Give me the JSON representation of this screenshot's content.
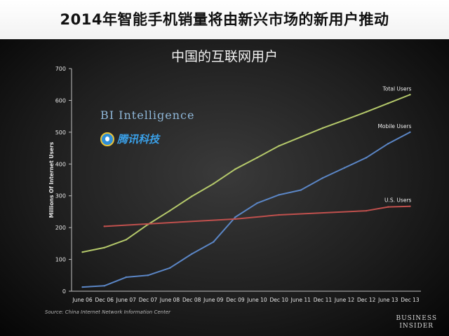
{
  "header": {
    "title": "2014年智能手机销量将由新兴市场的新用户推动"
  },
  "branding": {
    "bi_intelligence": "BI Intelligence",
    "tencent": "腾讯科技",
    "business_insider_line1": "BUSINESS",
    "business_insider_line2": "INSIDER"
  },
  "source": "Source: China Internet Network Information Center",
  "chart_data": {
    "type": "line",
    "title": "中国的互联网用户",
    "xlabel": "",
    "ylabel": "Millions Of Internet Users",
    "ylim": [
      0,
      700
    ],
    "yticks": [
      0,
      100,
      200,
      300,
      400,
      500,
      600,
      700
    ],
    "categories": [
      "June 06",
      "Dec 06",
      "June 07",
      "Dec 07",
      "June 08",
      "Dec 08",
      "June 09",
      "Dec 09",
      "June 10",
      "Dec 10",
      "June 11",
      "Dec 11",
      "June 12",
      "Dec 12",
      "June 13",
      "Dec 13"
    ],
    "grid": false,
    "series": [
      {
        "name": "Total Users",
        "color": "#b5c96b",
        "values": [
          123,
          137,
          162,
          210,
          253,
          298,
          338,
          384,
          420,
          457,
          485,
          513,
          538,
          564,
          591,
          618
        ]
      },
      {
        "name": "Mobile Users",
        "color": "#5b86c6",
        "values": [
          13,
          17,
          44,
          50,
          73,
          117,
          155,
          233,
          277,
          303,
          318,
          356,
          388,
          420,
          464,
          500
        ]
      },
      {
        "name": "U.S. Users",
        "color": "#c0504d",
        "values": [
          null,
          204,
          null,
          null,
          null,
          null,
          null,
          227,
          null,
          240,
          null,
          null,
          null,
          253,
          265,
          267
        ]
      }
    ]
  }
}
